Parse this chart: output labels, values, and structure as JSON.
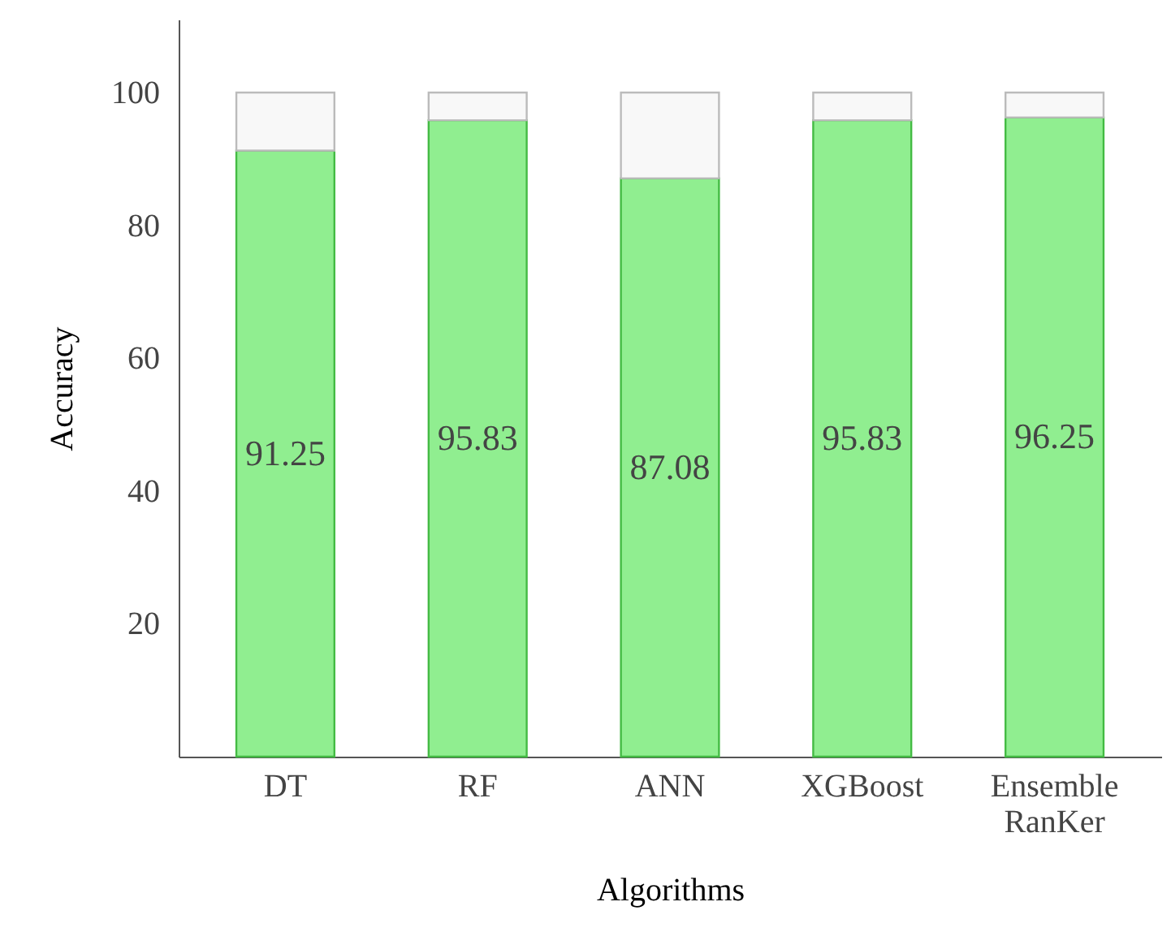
{
  "chart_data": {
    "type": "bar",
    "stacked": true,
    "xlabel": "Algorithms",
    "ylabel": "Accuracy",
    "categories": [
      "DT",
      "RF",
      "ANN",
      "XGBoost",
      "Ensemble RanKer"
    ],
    "series": [
      {
        "color": "#90ee90",
        "values": [
          91.25,
          95.83,
          87.08,
          95.83,
          96.25
        ],
        "value_labels": [
          "91.25",
          "95.83",
          "87.08",
          "95.83",
          "96.25"
        ]
      },
      {
        "color": "#f8f8f8",
        "values": [
          8.75,
          4.17,
          12.92,
          4.17,
          3.75
        ]
      }
    ],
    "ylim": [
      0,
      111
    ],
    "yticks": [
      20,
      40,
      60,
      80,
      100
    ],
    "grid": false
  }
}
